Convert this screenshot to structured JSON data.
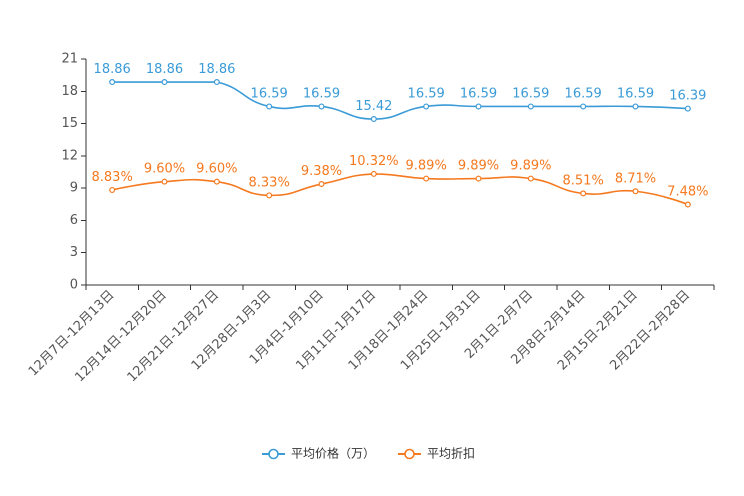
{
  "chart_data": {
    "type": "line",
    "smooth": true,
    "grid": false,
    "legend_position": "bottom-center",
    "ylim": [
      0,
      21
    ],
    "yticks": [
      0,
      3,
      6,
      9,
      12,
      15,
      18,
      21
    ],
    "label_decimals": 2,
    "categories": [
      "12月7日-12月13日",
      "12月14日-12月20日",
      "12月21日-12月27日",
      "12月28日-1月3日",
      "1月4日-1月10日",
      "1月11日-1月17日",
      "1月18日-1月24日",
      "1月25日-1月31日",
      "2月1日-2月7日",
      "2月8日-2月14日",
      "2月15日-2月21日",
      "2月22日-2月28日"
    ],
    "series": [
      {
        "name": "平均价格（万）",
        "color": "#3a9bd7",
        "label_suffix": "",
        "values": [
          18.86,
          18.86,
          18.86,
          16.59,
          16.59,
          15.42,
          16.59,
          16.59,
          16.59,
          16.59,
          16.59,
          16.39
        ]
      },
      {
        "name": "平均折扣",
        "color": "#f5791f",
        "label_suffix": "%",
        "values": [
          8.83,
          9.6,
          9.6,
          8.33,
          9.38,
          10.32,
          9.89,
          9.89,
          9.89,
          8.51,
          8.71,
          7.48
        ]
      }
    ]
  }
}
